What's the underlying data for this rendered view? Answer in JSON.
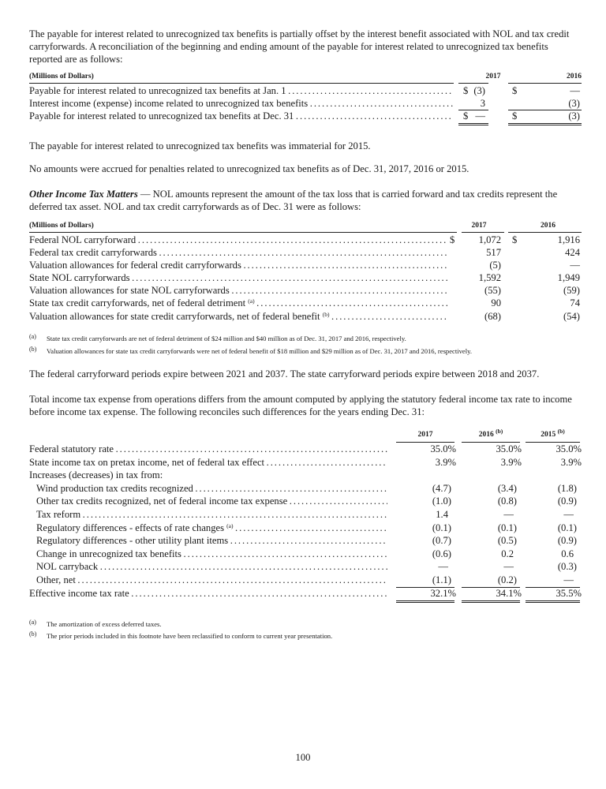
{
  "intro_paragraph": "The payable for interest related to unrecognized tax benefits is partially offset by the interest benefit associated with NOL and tax credit carryforwards.  A reconciliation of the beginning and ending amount of the payable for interest related to unrecognized tax benefits reported are as follows:",
  "interest_table": {
    "unit_header": "(Millions of Dollars)",
    "columns": [
      "2017",
      "2016"
    ],
    "rows": [
      {
        "label": "Payable for interest related to unrecognized tax benefits at Jan. 1",
        "d1": "$",
        "v1": "(3)",
        "d2": "$",
        "v2": "—"
      },
      {
        "label": "Interest income (expense) income related to unrecognized tax benefits",
        "d1": "",
        "v1": "3",
        "d2": "",
        "v2": "(3)"
      },
      {
        "label": "Payable for interest related to unrecognized tax benefits at Dec. 31",
        "d1": "$",
        "v1": "—",
        "d2": "$",
        "v2": "(3)"
      }
    ]
  },
  "immaterial_paragraph": "The payable for interest related to unrecognized tax benefits was immaterial for 2015.",
  "penalties_paragraph": "No amounts were accrued for penalties related to unrecognized tax benefits as of Dec. 31, 2017, 2016 or 2015.",
  "other_matters": {
    "heading": "Other Income Tax Matters",
    "text": " — NOL amounts represent the amount of the tax loss that is carried forward and tax credits represent the deferred tax asset.  NOL and tax credit carryforwards as of Dec. 31 were as follows:"
  },
  "nol_table": {
    "unit_header": "(Millions of Dollars)",
    "columns": [
      "2017",
      "2016"
    ],
    "rows": [
      {
        "label": "Federal NOL carryforward",
        "sup": "",
        "d1": "$",
        "v1": "1,072",
        "d2": "$",
        "v2": "1,916"
      },
      {
        "label": "Federal tax credit carryforwards",
        "sup": "",
        "d1": "",
        "v1": "517",
        "d2": "",
        "v2": "424"
      },
      {
        "label": "Valuation allowances for federal credit carryforwards",
        "sup": "",
        "d1": "",
        "v1": "(5)",
        "d2": "",
        "v2": "—"
      },
      {
        "label": "State NOL carryforwards",
        "sup": "",
        "d1": "",
        "v1": "1,592",
        "d2": "",
        "v2": "1,949"
      },
      {
        "label": "Valuation allowances for state NOL carryforwards",
        "sup": "",
        "d1": "",
        "v1": "(55)",
        "d2": "",
        "v2": "(59)"
      },
      {
        "label": "State tax credit carryforwards, net of federal detriment",
        "sup": "(a)",
        "d1": "",
        "v1": "90",
        "d2": "",
        "v2": "74"
      },
      {
        "label": "Valuation allowances for state credit carryforwards, net of federal benefit",
        "sup": "(b)",
        "d1": "",
        "v1": "(68)",
        "d2": "",
        "v2": "(54)"
      }
    ],
    "footnotes": [
      {
        "mark": "(a)",
        "text": "State tax credit carryforwards are net of federal detriment of $24 million and $40 million as of Dec. 31, 2017 and 2016, respectively."
      },
      {
        "mark": "(b)",
        "text": "Valuation allowances for state tax credit carryforwards were net of federal benefit of $18 million and $29 million as of Dec. 31, 2017 and 2016, respectively."
      }
    ]
  },
  "expiry_paragraph": "The federal carryforward periods expire between 2021 and 2037.  The state carryforward periods expire between 2018 and 2037.",
  "reconcile_paragraph": "Total income tax expense from operations differs from the amount computed by applying the statutory federal income tax rate to income before income tax expense.  The following reconciles such differences for the years ending Dec. 31:",
  "rate_table": {
    "columns": [
      {
        "year": "2017",
        "sup": ""
      },
      {
        "year": "2016",
        "sup": "(b)"
      },
      {
        "year": "2015",
        "sup": "(b)"
      }
    ],
    "rows": [
      {
        "label": "Federal statutory rate",
        "indent": false,
        "sup": "",
        "values": [
          "35.0%",
          "35.0%",
          "35.0%"
        ]
      },
      {
        "label": "State income tax on pretax income, net of federal tax effect",
        "indent": false,
        "sup": "",
        "values": [
          "3.9%",
          "3.9%",
          "3.9%"
        ]
      },
      {
        "label": "Increases (decreases) in tax from:",
        "indent": false,
        "sup": "",
        "nodots": true,
        "values": [
          "",
          "",
          ""
        ]
      },
      {
        "label": "Wind production tax credits recognized",
        "indent": true,
        "sup": "",
        "values": [
          "(4.7)",
          "(3.4)",
          "(1.8)"
        ]
      },
      {
        "label": "Other tax credits recognized, net of federal income tax expense",
        "indent": true,
        "sup": "",
        "values": [
          "(1.0)",
          "(0.8)",
          "(0.9)"
        ]
      },
      {
        "label": "Tax reform",
        "indent": true,
        "sup": "",
        "values": [
          "1.4",
          "—",
          "—"
        ]
      },
      {
        "label": "Regulatory differences - effects of rate changes",
        "indent": true,
        "sup": "(a)",
        "values": [
          "(0.1)",
          "(0.1)",
          "(0.1)"
        ]
      },
      {
        "label": "Regulatory differences - other utility plant items",
        "indent": true,
        "sup": "",
        "values": [
          "(0.7)",
          "(0.5)",
          "(0.9)"
        ]
      },
      {
        "label": "Change in unrecognized tax benefits",
        "indent": true,
        "sup": "",
        "values": [
          "(0.6)",
          "0.2",
          "0.6"
        ]
      },
      {
        "label": "NOL carryback",
        "indent": true,
        "sup": "",
        "values": [
          "—",
          "—",
          "(0.3)"
        ]
      },
      {
        "label": "Other, net",
        "indent": true,
        "sup": "",
        "values": [
          "(1.1)",
          "(0.2)",
          "—"
        ]
      },
      {
        "label": "Effective income tax rate",
        "indent": false,
        "sup": "",
        "values": [
          "32.1%",
          "34.1%",
          "35.5%"
        ]
      }
    ],
    "footnotes": [
      {
        "mark": "(a)",
        "text": "The amortization of excess deferred taxes."
      },
      {
        "mark": "(b)",
        "text": "The prior periods included in this footnote have been reclassified to conform to current year presentation."
      }
    ]
  },
  "page_number": "100"
}
